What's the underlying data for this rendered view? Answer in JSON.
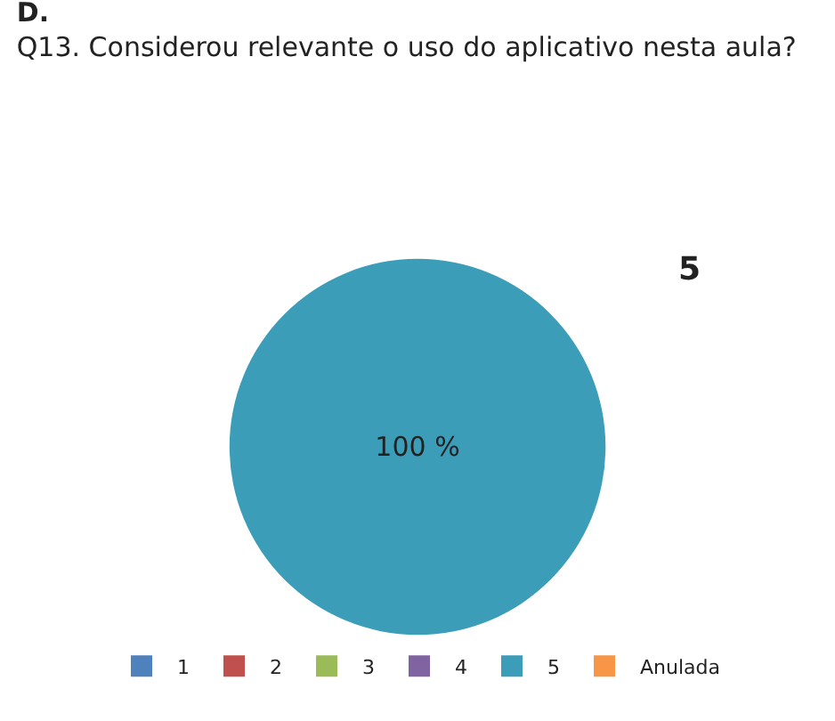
{
  "chart_data": {
    "type": "pie",
    "title": "D.",
    "subtitle": "Q13. Considerou relevante o uso do aplicativo nesta aula?",
    "categories": [
      "1",
      "2",
      "3",
      "4",
      "5",
      "Anulada"
    ],
    "values": [
      0,
      0,
      0,
      0,
      100,
      0
    ],
    "colors": [
      "#4f81bd",
      "#c0504d",
      "#9bbb59",
      "#8064a2",
      "#3c9db8",
      "#f79646"
    ],
    "value_labels": [
      null,
      null,
      null,
      null,
      "100 %",
      null
    ],
    "legend": "bottom"
  }
}
